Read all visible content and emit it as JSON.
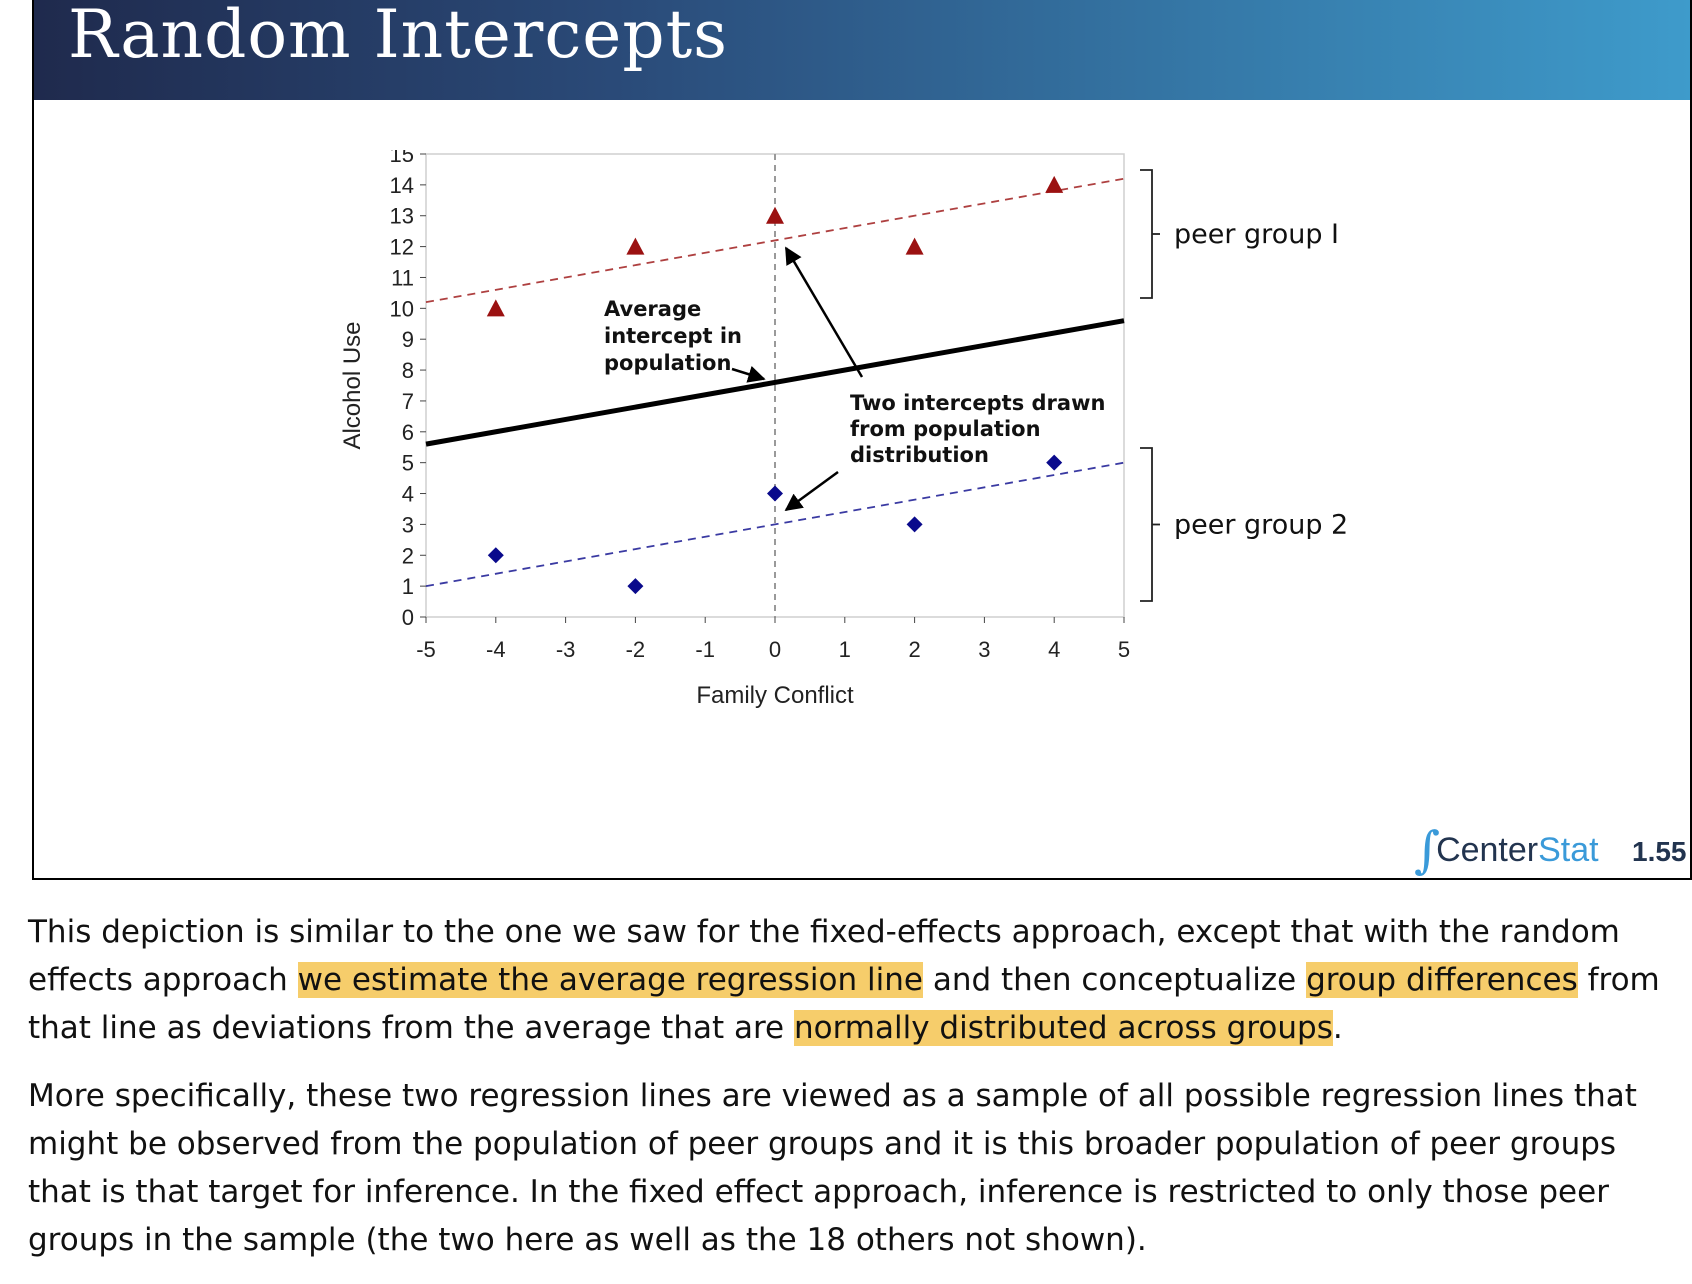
{
  "slide": {
    "title": "Random Intercepts",
    "page_number": "1.55",
    "logo": {
      "symbol": "∫",
      "text_center": "Center",
      "text_stat": "Stat"
    }
  },
  "chart_data": {
    "type": "scatter",
    "xlabel": "Family Conflict",
    "ylabel": "Alcohol Use",
    "xlim": [
      -5,
      5
    ],
    "ylim": [
      0,
      15
    ],
    "x_ticks": [
      -5,
      -4,
      -3,
      -2,
      -1,
      0,
      1,
      2,
      3,
      4,
      5
    ],
    "y_ticks": [
      0,
      1,
      2,
      3,
      4,
      5,
      6,
      7,
      8,
      9,
      10,
      11,
      12,
      13,
      14,
      15
    ],
    "grid": false,
    "series": [
      {
        "name": "peer group I",
        "marker": "triangle",
        "color": "#9b1111",
        "points": [
          {
            "x": -4,
            "y": 10
          },
          {
            "x": -2,
            "y": 12
          },
          {
            "x": 0,
            "y": 13
          },
          {
            "x": 2,
            "y": 12
          },
          {
            "x": 4,
            "y": 14
          }
        ],
        "line": {
          "x": [
            -5,
            5
          ],
          "y": [
            10.2,
            14.2
          ],
          "style": "dashed"
        }
      },
      {
        "name": "peer group 2",
        "marker": "diamond",
        "color": "#0a0a8c",
        "points": [
          {
            "x": -4,
            "y": 2
          },
          {
            "x": -2,
            "y": 1
          },
          {
            "x": 0,
            "y": 4
          },
          {
            "x": 2,
            "y": 3
          },
          {
            "x": 4,
            "y": 5
          }
        ],
        "line": {
          "x": [
            -5,
            5
          ],
          "y": [
            1.0,
            5.0
          ],
          "style": "dashed"
        }
      }
    ],
    "average_line": {
      "x": [
        -5,
        5
      ],
      "y": [
        5.6,
        9.6
      ],
      "color": "#000000",
      "style": "solid"
    },
    "reference_line_x": 0,
    "annotations": {
      "average": [
        "Average",
        "intercept in",
        "population"
      ],
      "drawn": [
        "Two intercepts drawn",
        "from population",
        "distribution"
      ]
    },
    "group_labels": [
      "peer group I",
      "peer group 2"
    ]
  },
  "notes": {
    "p1": [
      {
        "text": "This depiction is similar to the one we saw for the fixed-effects approach, except that with the random effects approach ",
        "hl": false
      },
      {
        "text": "we estimate the average regression line",
        "hl": true
      },
      {
        "text": " and then conceptualize ",
        "hl": false
      },
      {
        "text": "group differences",
        "hl": true
      },
      {
        "text": " from that line as deviations from the average that are ",
        "hl": false
      },
      {
        "text": "normally distributed across groups",
        "hl": true
      },
      {
        "text": ".",
        "hl": false
      }
    ],
    "p2": "More specifically, these two regression lines are viewed as a sample of all possible regression lines that might be observed from the population of peer groups and it is this broader population of peer groups that is that target for inference.  In the fixed effect approach, inference is restricted to only those peer groups in the sample (the two here as well as the 18 others not shown)."
  }
}
